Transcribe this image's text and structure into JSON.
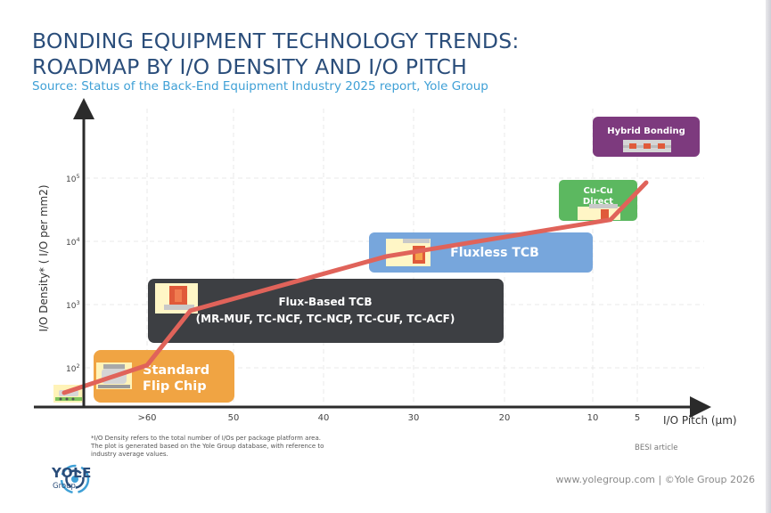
{
  "header": {
    "title_line1": "BONDING EQUIPMENT TECHNOLOGY TRENDS:",
    "title_line2": "ROADMAP BY I/O DENSITY AND I/O PITCH",
    "source": "Source: Status of the Back-End Equipment Industry 2025 report, Yole Group"
  },
  "chart_data": {
    "type": "scatter",
    "title": "Bonding equipment technology trends: roadmap by I/O density and I/O pitch",
    "xlabel": "I/O Pitch (µm)",
    "ylabel": "I/O Density* ( I/O per mm2)",
    "x_ticks": [
      ">60",
      "50",
      "40",
      "30",
      "20",
      "10",
      "5"
    ],
    "y_ticks": [
      {
        "base": "10",
        "exp": "2",
        "value": 100
      },
      {
        "base": "10",
        "exp": "3",
        "value": 1000
      },
      {
        "base": "10",
        "exp": "4",
        "value": 10000
      },
      {
        "base": "10",
        "exp": "5",
        "value": 100000
      }
    ],
    "grid": true,
    "trend_color": "#e0635a",
    "technologies": [
      {
        "key": "standard",
        "label_lines": [
          "Standard",
          "Flip Chip"
        ],
        "color": "#f0a443",
        "pitch": 60,
        "density": 110
      },
      {
        "key": "fluxbased",
        "label_lines": [
          "Flux-Based TCB",
          "(MR-MUF, TC-NCF, TC-NCP, TC-CUF, TC-ACF)"
        ],
        "color": "#3d3f43",
        "pitch": 55,
        "density": 800
      },
      {
        "key": "fluxless",
        "label_lines": [
          "Fluxless TCB"
        ],
        "color": "#77a6dc",
        "pitch": 33,
        "density": 5800
      },
      {
        "key": "cucu",
        "label_lines": [
          "Cu-Cu",
          "Direct"
        ],
        "color": "#5cb860",
        "pitch": 8,
        "density": 22000
      },
      {
        "key": "hybrid",
        "label_lines": [
          "Hybrid Bonding"
        ],
        "color": "#7d3a7e",
        "pitch": 4,
        "density": 85000
      }
    ]
  },
  "footnote": {
    "line1": "*I/O Density refers to the total number of I/Os per package platform area.",
    "line2": "The plot is generated based on the Yole Group database, with reference to",
    "line3": "industry average values."
  },
  "credit": "BESI article",
  "logo": {
    "name": "YOLE",
    "sub": "Group"
  },
  "copyright": "www.yolegroup.com | ©Yole Group 2026"
}
